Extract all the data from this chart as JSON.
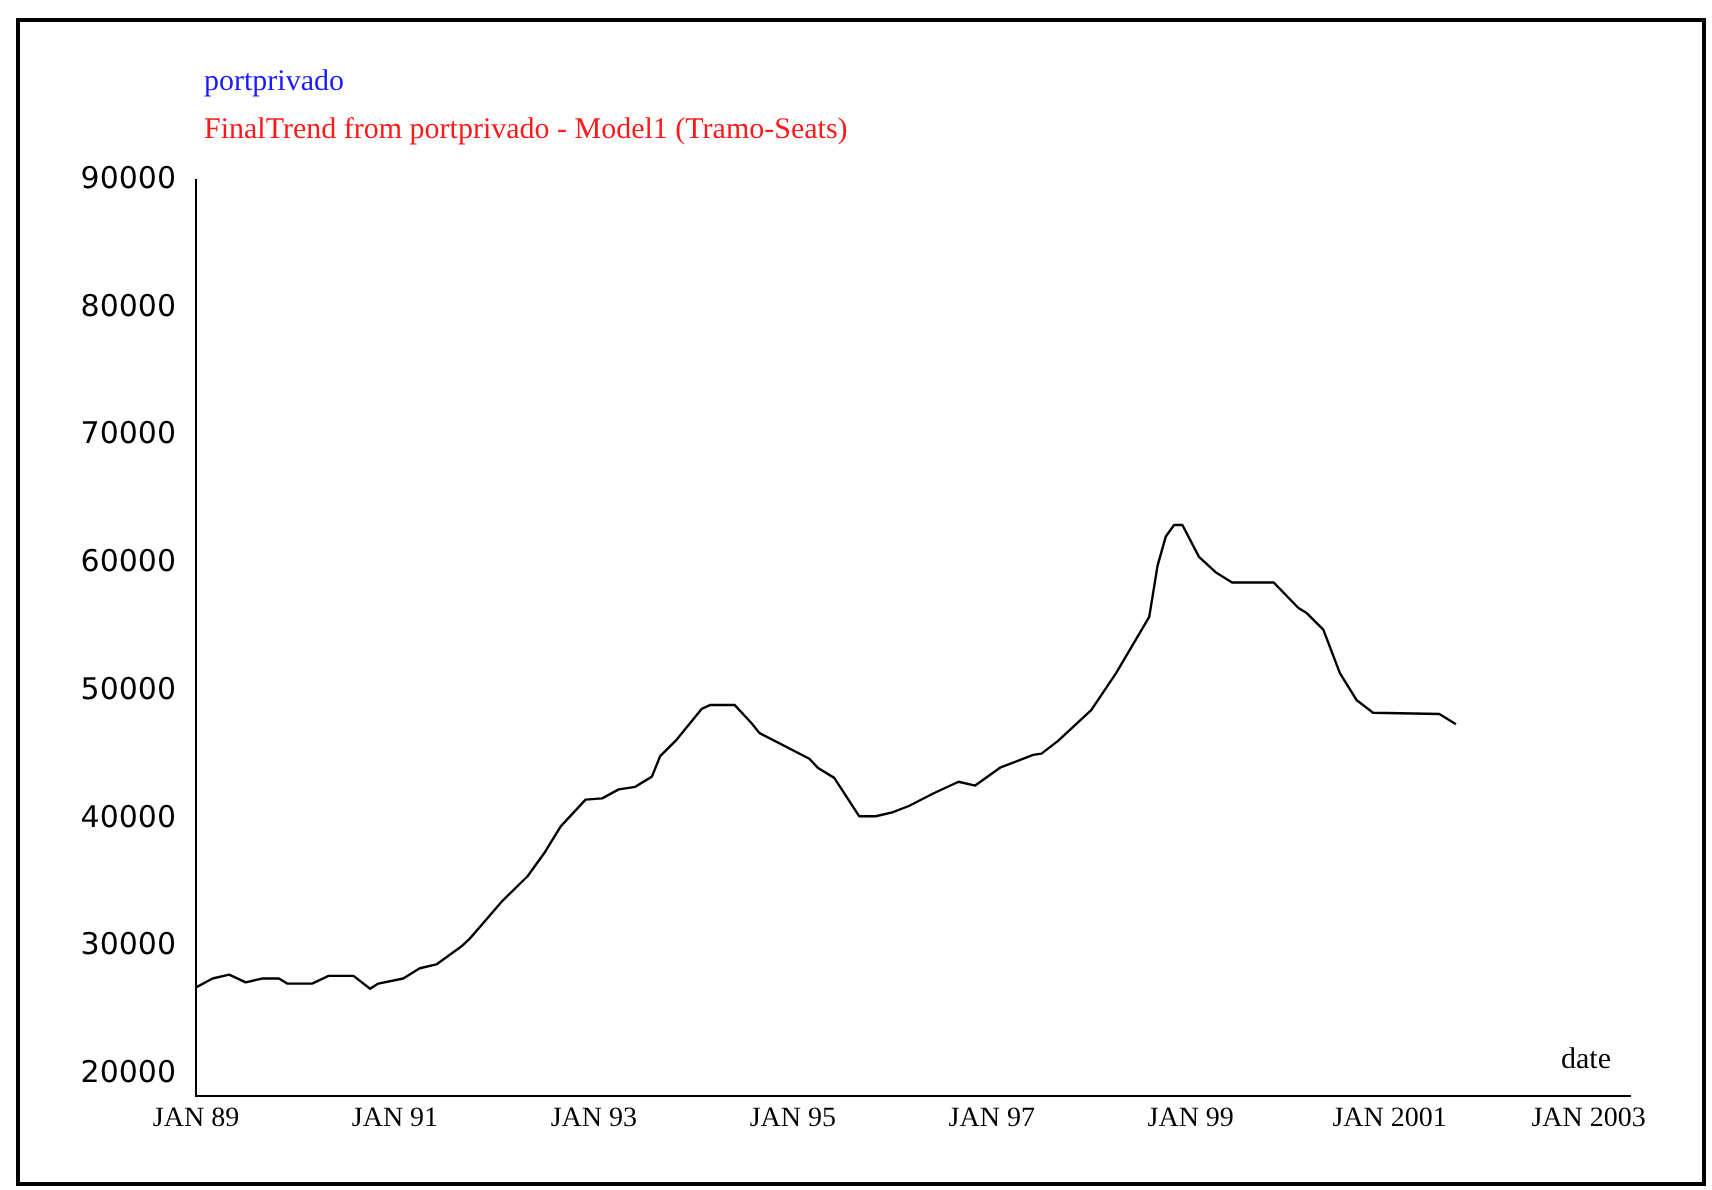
{
  "chart_data": {
    "type": "line",
    "title": "portprivado",
    "subtitle": "FinalTrend from portprivado - Model1 (Tramo-Seats)",
    "xlabel": "date",
    "x": [
      "1989-01",
      "1989-03",
      "1989-05",
      "1989-07",
      "1989-09",
      "1989-11",
      "1989-12",
      "1990-03",
      "1990-05",
      "1990-08",
      "1990-10",
      "1990-11",
      "1991-02",
      "1991-04",
      "1991-06",
      "1991-09",
      "1991-10",
      "1991-12",
      "1992-02",
      "1992-05",
      "1992-07",
      "1992-09",
      "1992-12",
      "1993-02",
      "1993-04",
      "1993-06",
      "1993-08",
      "1993-09",
      "1993-11",
      "1994-02",
      "1994-03",
      "1994-06",
      "1994-08",
      "1994-09",
      "1995-03",
      "1995-04",
      "1995-06",
      "1995-08",
      "1995-09",
      "1995-11",
      "1996-01",
      "1996-03",
      "1996-06",
      "1996-09",
      "1996-11",
      "1997-02",
      "1997-06",
      "1997-07",
      "1997-09",
      "1998-01",
      "1998-04",
      "1998-08",
      "1998-09",
      "1998-10",
      "1998-11",
      "1998-12",
      "1999-02",
      "1999-04",
      "1999-06",
      "1999-11",
      "2000-02",
      "2000-03",
      "2000-05",
      "2000-07",
      "2000-09",
      "2000-11",
      "2001-07",
      "2001-09"
    ],
    "series": [
      {
        "color": "#000000",
        "values": [
          26800,
          27500,
          27800,
          27200,
          27500,
          27500,
          27100,
          27100,
          27700,
          27700,
          26700,
          27100,
          27500,
          28300,
          28600,
          30000,
          30600,
          32100,
          33600,
          35500,
          37300,
          39400,
          41500,
          41600,
          42300,
          42500,
          43300,
          44900,
          46200,
          48600,
          48900,
          48900,
          47500,
          46700,
          44700,
          44000,
          43200,
          41200,
          40200,
          40200,
          40500,
          41000,
          42000,
          42900,
          42600,
          44000,
          45000,
          45100,
          46100,
          48500,
          51400,
          55800,
          59800,
          62100,
          63000,
          63000,
          60500,
          59300,
          58500,
          58500,
          56500,
          56100,
          54800,
          51400,
          49300,
          48300,
          48200,
          47400
        ]
      }
    ],
    "xlim": [
      "1989-01",
      "2003-06"
    ],
    "xticks": [
      {
        "value": "1989-01",
        "label": "JAN 89"
      },
      {
        "value": "1991-01",
        "label": "JAN 91"
      },
      {
        "value": "1993-01",
        "label": "JAN 93"
      },
      {
        "value": "1995-01",
        "label": "JAN 95"
      },
      {
        "value": "1997-01",
        "label": "JAN 97"
      },
      {
        "value": "1999-01",
        "label": "JAN 99"
      },
      {
        "value": "2001-01",
        "label": "JAN 2001"
      },
      {
        "value": "2003-01",
        "label": "JAN 2003"
      }
    ],
    "ylim": [
      18300,
      90000
    ],
    "yticks": [
      20000,
      30000,
      40000,
      50000,
      60000,
      70000,
      80000,
      90000
    ],
    "grid": false,
    "legend": false,
    "marker": "none",
    "line_style": "solid"
  }
}
